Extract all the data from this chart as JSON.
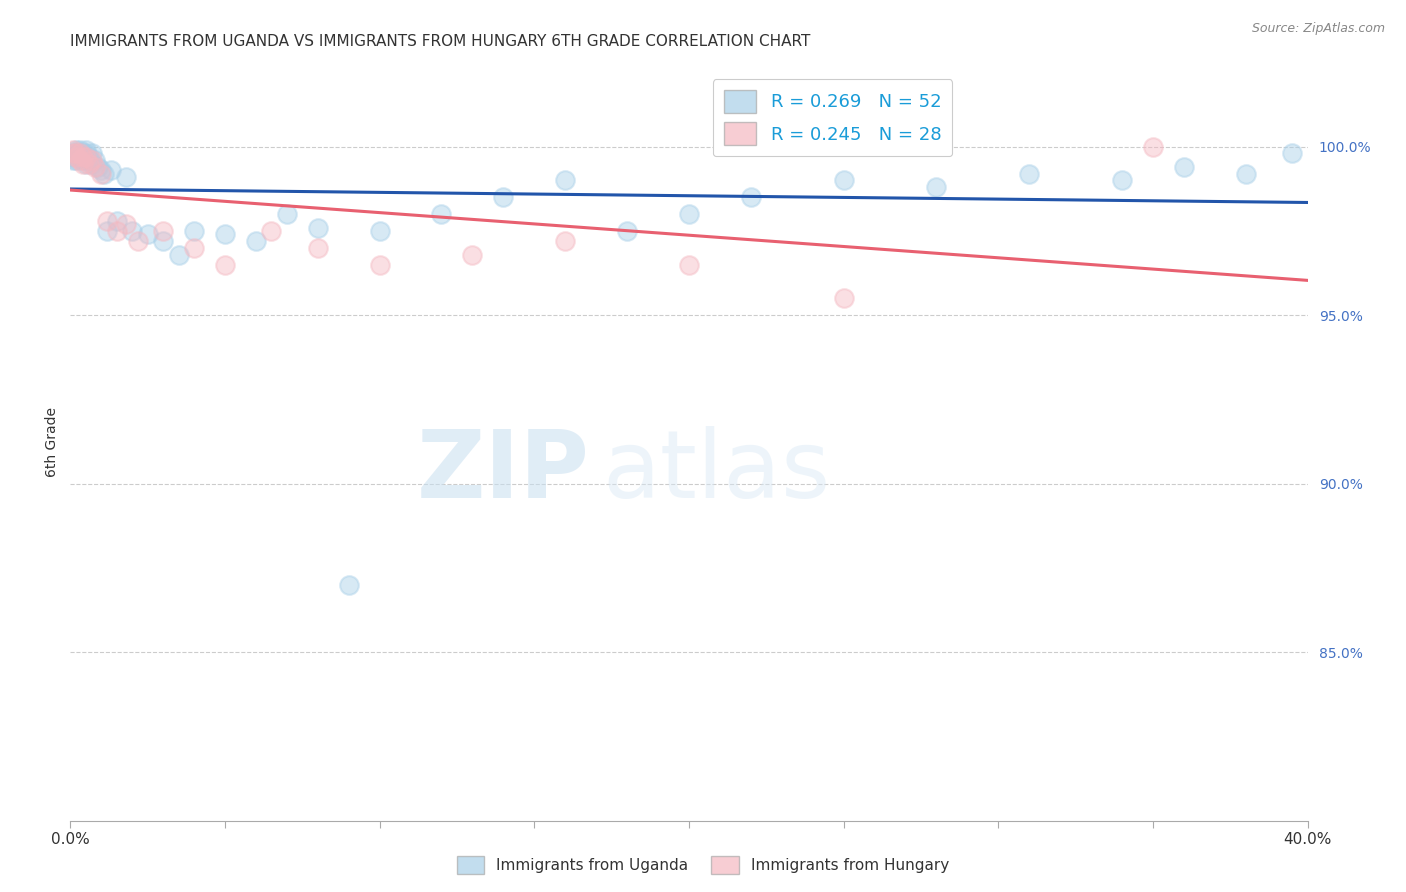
{
  "title": "IMMIGRANTS FROM UGANDA VS IMMIGRANTS FROM HUNGARY 6TH GRADE CORRELATION CHART",
  "source": "Source: ZipAtlas.com",
  "ylabel": "6th Grade",
  "ylabel_ticks": [
    "100.0%",
    "95.0%",
    "90.0%",
    "85.0%"
  ],
  "ylabel_values": [
    1.0,
    0.95,
    0.9,
    0.85
  ],
  "xlim": [
    0.0,
    0.4
  ],
  "ylim": [
    0.8,
    1.025
  ],
  "legend_r1": "R = 0.269",
  "legend_n1": "N = 52",
  "legend_r2": "R = 0.245",
  "legend_n2": "N = 28",
  "color_uganda": "#a8cfe8",
  "color_hungary": "#f4b8c1",
  "color_line_uganda": "#2255aa",
  "color_line_hungary": "#e86070",
  "uganda_x": [
    0.001,
    0.001,
    0.001,
    0.002,
    0.002,
    0.002,
    0.002,
    0.003,
    0.003,
    0.003,
    0.004,
    0.004,
    0.004,
    0.005,
    0.005,
    0.005,
    0.006,
    0.006,
    0.007,
    0.007,
    0.008,
    0.009,
    0.01,
    0.011,
    0.012,
    0.013,
    0.015,
    0.018,
    0.02,
    0.025,
    0.03,
    0.035,
    0.04,
    0.05,
    0.06,
    0.07,
    0.08,
    0.09,
    0.1,
    0.12,
    0.14,
    0.16,
    0.18,
    0.2,
    0.22,
    0.25,
    0.28,
    0.31,
    0.34,
    0.36,
    0.38,
    0.395
  ],
  "uganda_y": [
    0.998,
    0.997,
    0.996,
    0.999,
    0.998,
    0.997,
    0.996,
    0.999,
    0.998,
    0.997,
    0.998,
    0.997,
    0.996,
    0.999,
    0.998,
    0.995,
    0.997,
    0.996,
    0.998,
    0.995,
    0.996,
    0.994,
    0.993,
    0.992,
    0.975,
    0.993,
    0.978,
    0.991,
    0.975,
    0.974,
    0.972,
    0.968,
    0.975,
    0.974,
    0.972,
    0.98,
    0.976,
    0.87,
    0.975,
    0.98,
    0.985,
    0.99,
    0.975,
    0.98,
    0.985,
    0.99,
    0.988,
    0.992,
    0.99,
    0.994,
    0.992,
    0.998
  ],
  "hungary_x": [
    0.001,
    0.001,
    0.002,
    0.002,
    0.003,
    0.003,
    0.004,
    0.004,
    0.005,
    0.006,
    0.007,
    0.008,
    0.01,
    0.012,
    0.015,
    0.018,
    0.022,
    0.03,
    0.04,
    0.05,
    0.065,
    0.08,
    0.1,
    0.13,
    0.16,
    0.2,
    0.25,
    0.35
  ],
  "hungary_y": [
    0.999,
    0.998,
    0.998,
    0.997,
    0.998,
    0.996,
    0.997,
    0.995,
    0.997,
    0.995,
    0.996,
    0.994,
    0.992,
    0.978,
    0.975,
    0.977,
    0.972,
    0.975,
    0.97,
    0.965,
    0.975,
    0.97,
    0.965,
    0.968,
    0.972,
    0.965,
    0.955,
    1.0
  ],
  "watermark_zip": "ZIP",
  "watermark_atlas": "atlas",
  "title_fontsize": 11,
  "source_fontsize": 9,
  "marker_size": 180,
  "marker_alpha": 0.45,
  "marker_linewidth": 1.5
}
